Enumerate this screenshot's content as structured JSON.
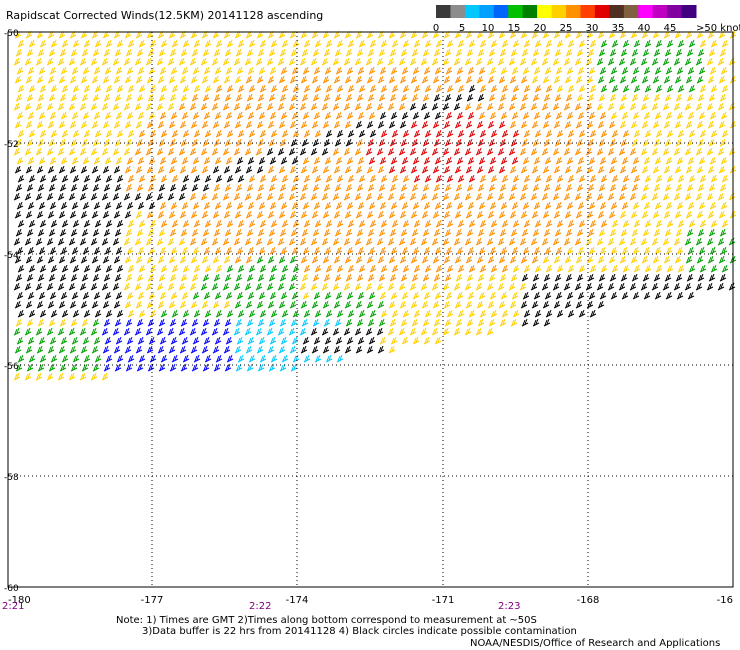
{
  "title": "Rapidscat Corrected Winds(12.5KM) 20141128 ascending",
  "color_scale": {
    "colors": [
      "#3a3a3a",
      "#8c8c8c",
      "#00c8ff",
      "#00a0ff",
      "#0064ff",
      "#00c000",
      "#008000",
      "#ffff00",
      "#ffd000",
      "#ff9000",
      "#ff4000",
      "#e00000",
      "#503020",
      "#806040",
      "#ff00ff",
      "#c000c0",
      "#8000a0",
      "#400080"
    ],
    "tick_labels": [
      "0",
      "5",
      "10",
      "15",
      "20",
      "25",
      "30",
      "35",
      "40",
      "45",
      ">50 knots"
    ]
  },
  "axes": {
    "lon_labels": [
      "-180",
      "-177",
      "-174",
      "-171",
      "-168",
      "-16"
    ],
    "lat_labels": [
      "-50",
      "-52",
      "-54",
      "-56",
      "-58",
      "-60"
    ],
    "time_labels": [
      "2:21",
      "2:22",
      "2:23"
    ]
  },
  "wind_field": {
    "swath_description": "diagonal swath, speed mostly 20-35 knots with a band >35 knots near -172 lon, -52 lat",
    "zones": [
      {
        "color": "#ffd000"
      },
      {
        "color": "#ff9000"
      },
      {
        "color": "#e00000"
      },
      {
        "color": "#00a000"
      },
      {
        "color": "#0000ff"
      },
      {
        "color": "#00c8ff"
      },
      {
        "color": "#000000"
      }
    ]
  },
  "notes": {
    "line1": "Note: 1) Times are GMT 2)Times along bottom correspond to measurement at ~50S",
    "line2": "3)Data buffer is 22 hrs from 20141128 4) Black circles indicate possible contamination",
    "credit": "NOAA/NESDIS/Office of Research and Applications"
  }
}
